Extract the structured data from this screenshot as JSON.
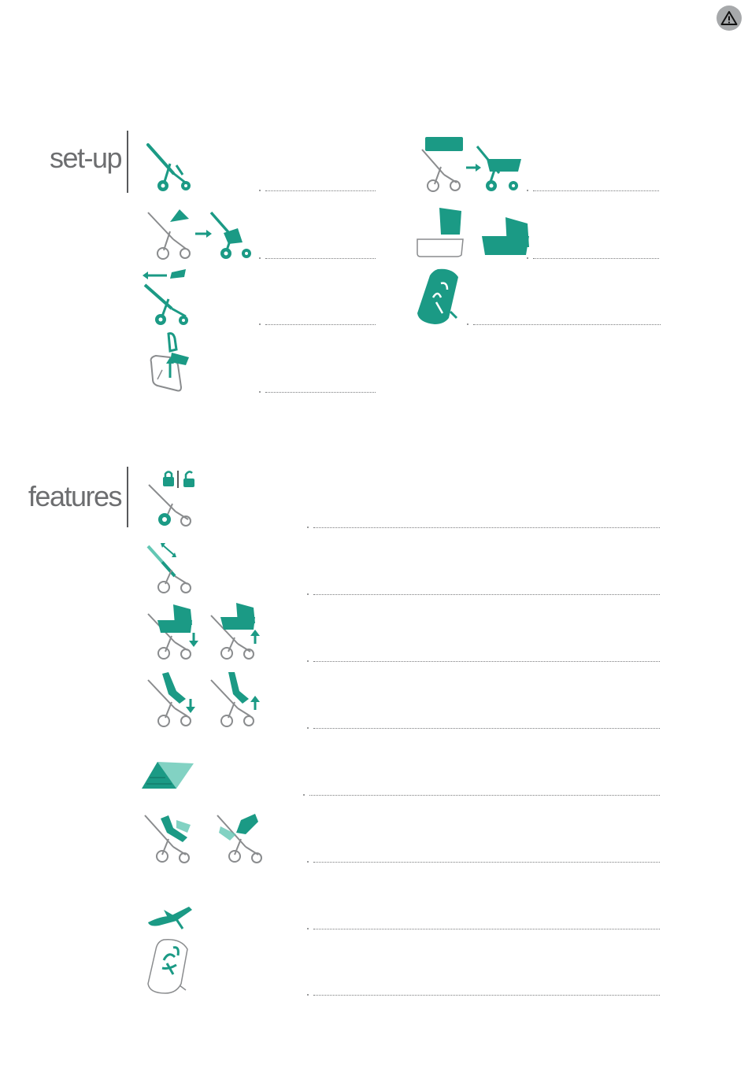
{
  "sections": {
    "setup": {
      "heading": "set-up"
    },
    "features": {
      "heading": "features"
    }
  },
  "colors": {
    "accent": "#1b9a85",
    "accent_light": "#63c7b4",
    "outline": "#8a8c8e",
    "heading": "#6d6e70",
    "warning_badge": "#a7a9ab"
  },
  "icons": {
    "warning": "warning-triangle-icon",
    "setup": [
      "stroller-frame-icon",
      "seat-attach-icon",
      "bumper-bar-remove-icon",
      "harness-insert-icon",
      "carrycot-attach-icon",
      "carrycot-hood-icon",
      "footmuff-icon"
    ],
    "features": [
      "brake-lock-unlock-icon",
      "handlebar-adjust-icon",
      "carrycot-height-icon",
      "seat-recline-icon",
      "sun-canopy-icon",
      "seat-fold-icon",
      "bumper-bar-icon",
      "seat-liner-icon"
    ]
  }
}
